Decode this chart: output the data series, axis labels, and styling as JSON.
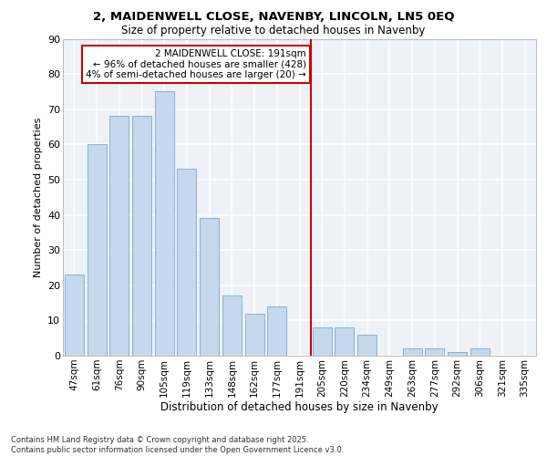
{
  "title1": "2, MAIDENWELL CLOSE, NAVENBY, LINCOLN, LN5 0EQ",
  "title2": "Size of property relative to detached houses in Navenby",
  "xlabel": "Distribution of detached houses by size in Navenby",
  "ylabel": "Number of detached properties",
  "categories": [
    "47sqm",
    "61sqm",
    "76sqm",
    "90sqm",
    "105sqm",
    "119sqm",
    "133sqm",
    "148sqm",
    "162sqm",
    "177sqm",
    "191sqm",
    "205sqm",
    "220sqm",
    "234sqm",
    "249sqm",
    "263sqm",
    "277sqm",
    "292sqm",
    "306sqm",
    "321sqm",
    "335sqm"
  ],
  "values": [
    23,
    60,
    68,
    68,
    75,
    53,
    39,
    17,
    12,
    14,
    0,
    8,
    8,
    6,
    0,
    2,
    2,
    1,
    2,
    0,
    0
  ],
  "bar_color": "#c5d8ed",
  "bar_edge_color": "#7aaacc",
  "vline_x_index": 10.5,
  "vline_color": "#cc0000",
  "annotation_text": "2 MAIDENWELL CLOSE: 191sqm\n← 96% of detached houses are smaller (428)\n4% of semi-detached houses are larger (20) →",
  "annotation_box_color": "#ffffff",
  "annotation_box_edge": "#cc0000",
  "ylim": [
    0,
    90
  ],
  "yticks": [
    0,
    10,
    20,
    30,
    40,
    50,
    60,
    70,
    80,
    90
  ],
  "footer": "Contains HM Land Registry data © Crown copyright and database right 2025.\nContains public sector information licensed under the Open Government Licence v3.0.",
  "bg_color": "#eef2f8",
  "grid_color": "#ffffff",
  "fig_bg": "#ffffff"
}
